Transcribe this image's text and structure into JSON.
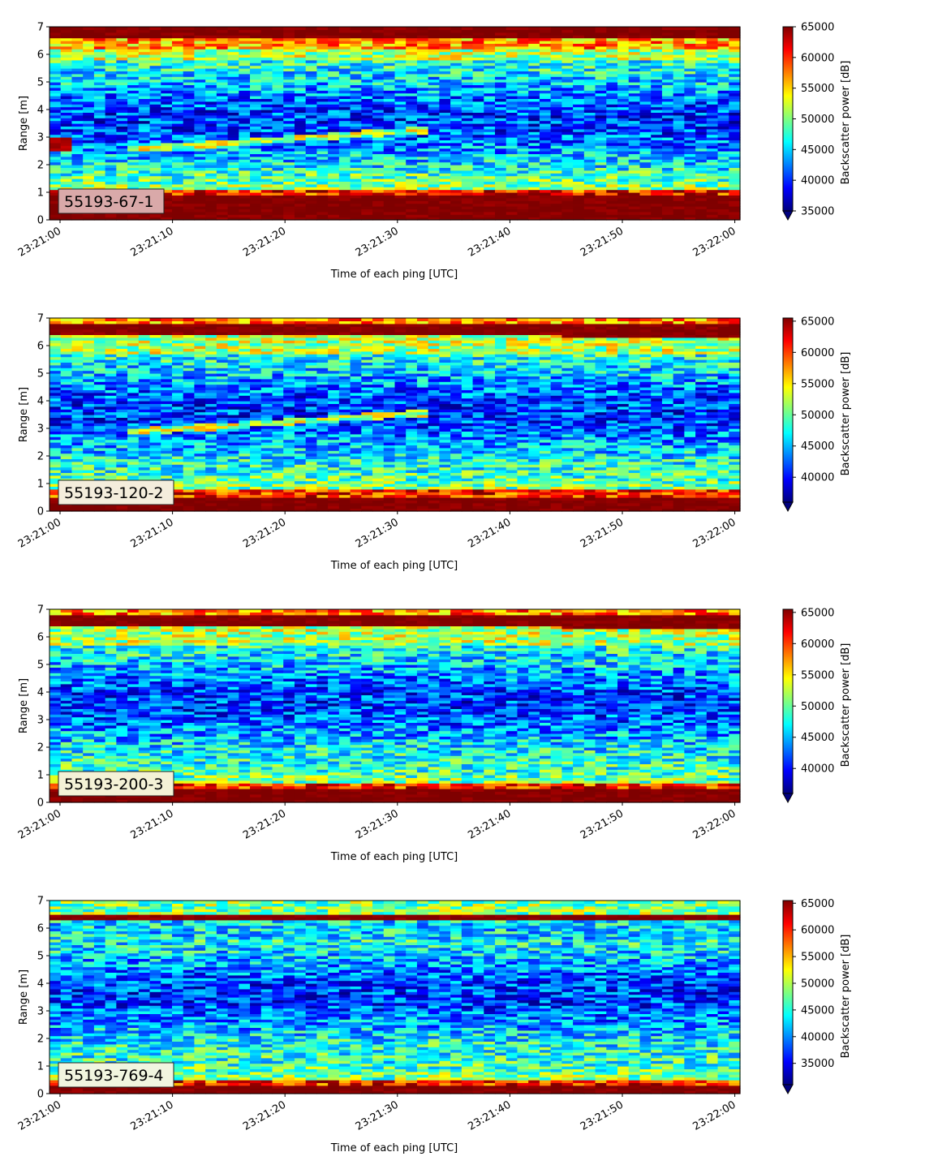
{
  "colormap": [
    "#00007f",
    "#0000ff",
    "#007fff",
    "#00ffff",
    "#7fff7f",
    "#ffff00",
    "#ff7f00",
    "#ff0000",
    "#7f0000"
  ],
  "chart_data": [
    {
      "type": "heatmap",
      "label": "55193-67-1",
      "label_box_color": "#d9a9a9",
      "xlabel": "Time of each ping [UTC]",
      "ylabel": "Range [m]",
      "colorbar_label": "Backscatter power [dB]",
      "xticks": [
        "23:21:00",
        "23:21:10",
        "23:21:20",
        "23:21:30",
        "23:21:40",
        "23:21:50",
        "23:22:00"
      ],
      "yticks": [
        "0",
        "1",
        "2",
        "3",
        "4",
        "5",
        "6",
        "7"
      ],
      "ylim": [
        0,
        7
      ],
      "colorbar_ticks": [
        "35000",
        "40000",
        "45000",
        "50000",
        "55000",
        "60000",
        "65000"
      ],
      "clim": [
        35000,
        65000
      ]
    },
    {
      "type": "heatmap",
      "label": "55193-120-2",
      "label_box_color": "#f4eddc",
      "xlabel": "Time of each ping [UTC]",
      "ylabel": "Range [m]",
      "colorbar_label": "Backscatter power [dB]",
      "xticks": [
        "23:21:00",
        "23:21:10",
        "23:21:20",
        "23:21:30",
        "23:21:40",
        "23:21:50",
        "23:22:00"
      ],
      "yticks": [
        "0",
        "1",
        "2",
        "3",
        "4",
        "5",
        "6",
        "7"
      ],
      "ylim": [
        0,
        7
      ],
      "colorbar_ticks": [
        "40000",
        "45000",
        "50000",
        "55000",
        "60000",
        "65000"
      ],
      "clim": [
        36000,
        65500
      ]
    },
    {
      "type": "heatmap",
      "label": "55193-200-3",
      "label_box_color": "#f4f2d6",
      "xlabel": "Time of each ping [UTC]",
      "ylabel": "Range [m]",
      "colorbar_label": "Backscatter power [dB]",
      "xticks": [
        "23:21:00",
        "23:21:10",
        "23:21:20",
        "23:21:30",
        "23:21:40",
        "23:21:50",
        "23:22:00"
      ],
      "yticks": [
        "0",
        "1",
        "2",
        "3",
        "4",
        "5",
        "6",
        "7"
      ],
      "ylim": [
        0,
        7
      ],
      "colorbar_ticks": [
        "40000",
        "45000",
        "50000",
        "55000",
        "60000",
        "65000"
      ],
      "clim": [
        36000,
        65500
      ]
    },
    {
      "type": "heatmap",
      "label": "55193-769-4",
      "label_box_color": "#f1f5df",
      "xlabel": "Time of each ping [UTC]",
      "ylabel": "Range [m]",
      "colorbar_label": "Backscatter power [dB]",
      "xticks": [
        "23:21:00",
        "23:21:10",
        "23:21:20",
        "23:21:30",
        "23:21:40",
        "23:21:50",
        "23:22:00"
      ],
      "yticks": [
        "0",
        "1",
        "2",
        "3",
        "4",
        "5",
        "6",
        "7"
      ],
      "ylim": [
        0,
        7
      ],
      "colorbar_ticks": [
        "35000",
        "40000",
        "45000",
        "50000",
        "55000",
        "60000",
        "65000"
      ],
      "clim": [
        31000,
        65500
      ]
    }
  ]
}
